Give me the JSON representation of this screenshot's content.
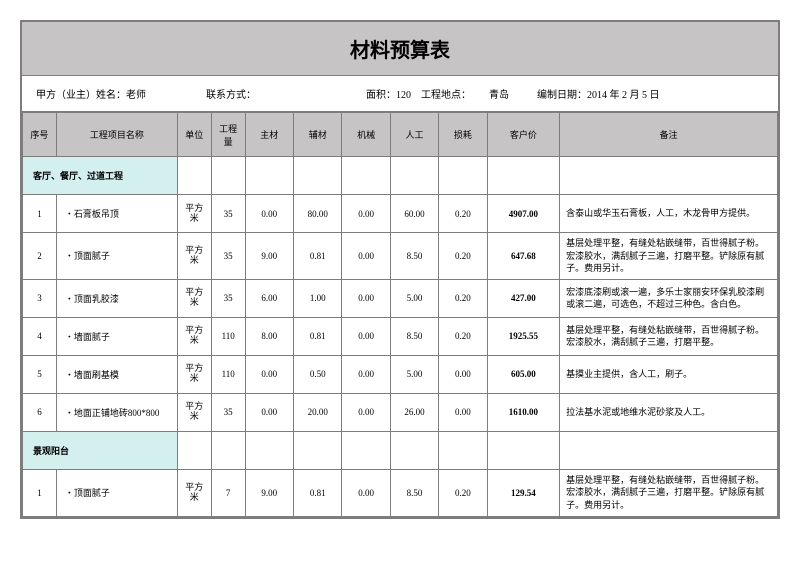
{
  "title": "材料预算表",
  "info": {
    "owner_label": "甲方（业主）姓名：老师",
    "contact_label": "联系方式：",
    "area_label": "面积：120",
    "location_label": "工程地点：",
    "location_value": "青岛",
    "date_label": "编制日期：2014 年 2 月 5 日"
  },
  "headers": {
    "seq": "序号",
    "name": "工程项目名称",
    "unit": "单位",
    "qty": "工程量",
    "main_mat": "主材",
    "aux_mat": "辅材",
    "machine": "机械",
    "labor": "人工",
    "loss": "损耗",
    "price": "客户价",
    "remark": "备注"
  },
  "sections": [
    {
      "title": "客厅、餐厅、过道工程",
      "rows": [
        {
          "seq": "1",
          "name": "・石膏板吊顶",
          "unit": "平方米",
          "qty": "35",
          "main": "0.00",
          "aux": "80.00",
          "mach": "0.00",
          "labor": "60.00",
          "loss": "0.20",
          "price": "4907.00",
          "remark": "含泰山或华玉石膏板，人工，木龙骨甲方提供。"
        },
        {
          "seq": "2",
          "name": "・顶面腻子",
          "unit": "平方米",
          "qty": "35",
          "main": "9.00",
          "aux": "0.81",
          "mach": "0.00",
          "labor": "8.50",
          "loss": "0.20",
          "price": "647.68",
          "remark": "基层处理平整，有缝处粘嵌缝带，百世得腻子粉。宏漆胶水，满刮腻子三遍，打磨平整。铲除原有腻子。费用另计。"
        },
        {
          "seq": "3",
          "name": "・顶面乳胶漆",
          "unit": "平方米",
          "qty": "35",
          "main": "6.00",
          "aux": "1.00",
          "mach": "0.00",
          "labor": "5.00",
          "loss": "0.20",
          "price": "427.00",
          "remark": "宏漆底漆刷或滚一遍，多乐士家丽安环保乳胶漆刷或滚二遍，可选色，不超过三种色。含白色。"
        },
        {
          "seq": "4",
          "name": "・墙面腻子",
          "unit": "平方米",
          "qty": "110",
          "main": "8.00",
          "aux": "0.81",
          "mach": "0.00",
          "labor": "8.50",
          "loss": "0.20",
          "price": "1925.55",
          "remark": "基层处理平整，有缝处粘嵌缝带，百世得腻子粉。宏漆胶水，满刮腻子三遍，打磨平整。"
        },
        {
          "seq": "5",
          "name": "・墙面刷基模",
          "unit": "平方米",
          "qty": "110",
          "main": "0.00",
          "aux": "0.50",
          "mach": "0.00",
          "labor": "5.00",
          "loss": "0.00",
          "price": "605.00",
          "remark": "基摸业主提供，含人工，刷子。"
        },
        {
          "seq": "6",
          "name": "・地面正铺地砖800*800",
          "unit": "平方米",
          "qty": "35",
          "main": "0.00",
          "aux": "20.00",
          "mach": "0.00",
          "labor": "26.00",
          "loss": "0.00",
          "price": "1610.00",
          "remark": "拉法基水泥或地维水泥砂浆及人工。"
        }
      ]
    },
    {
      "title": "景观阳台",
      "rows": [
        {
          "seq": "1",
          "name": "・顶面腻子",
          "unit": "平方米",
          "qty": "7",
          "main": "9.00",
          "aux": "0.81",
          "mach": "0.00",
          "labor": "8.50",
          "loss": "0.20",
          "price": "129.54",
          "remark": "基层处理平整，有缝处粘嵌缝带，百世得腻子粉。宏漆胶水，满刮腻子三遍，打磨平整。铲除原有腻子。费用另计。"
        }
      ]
    }
  ]
}
